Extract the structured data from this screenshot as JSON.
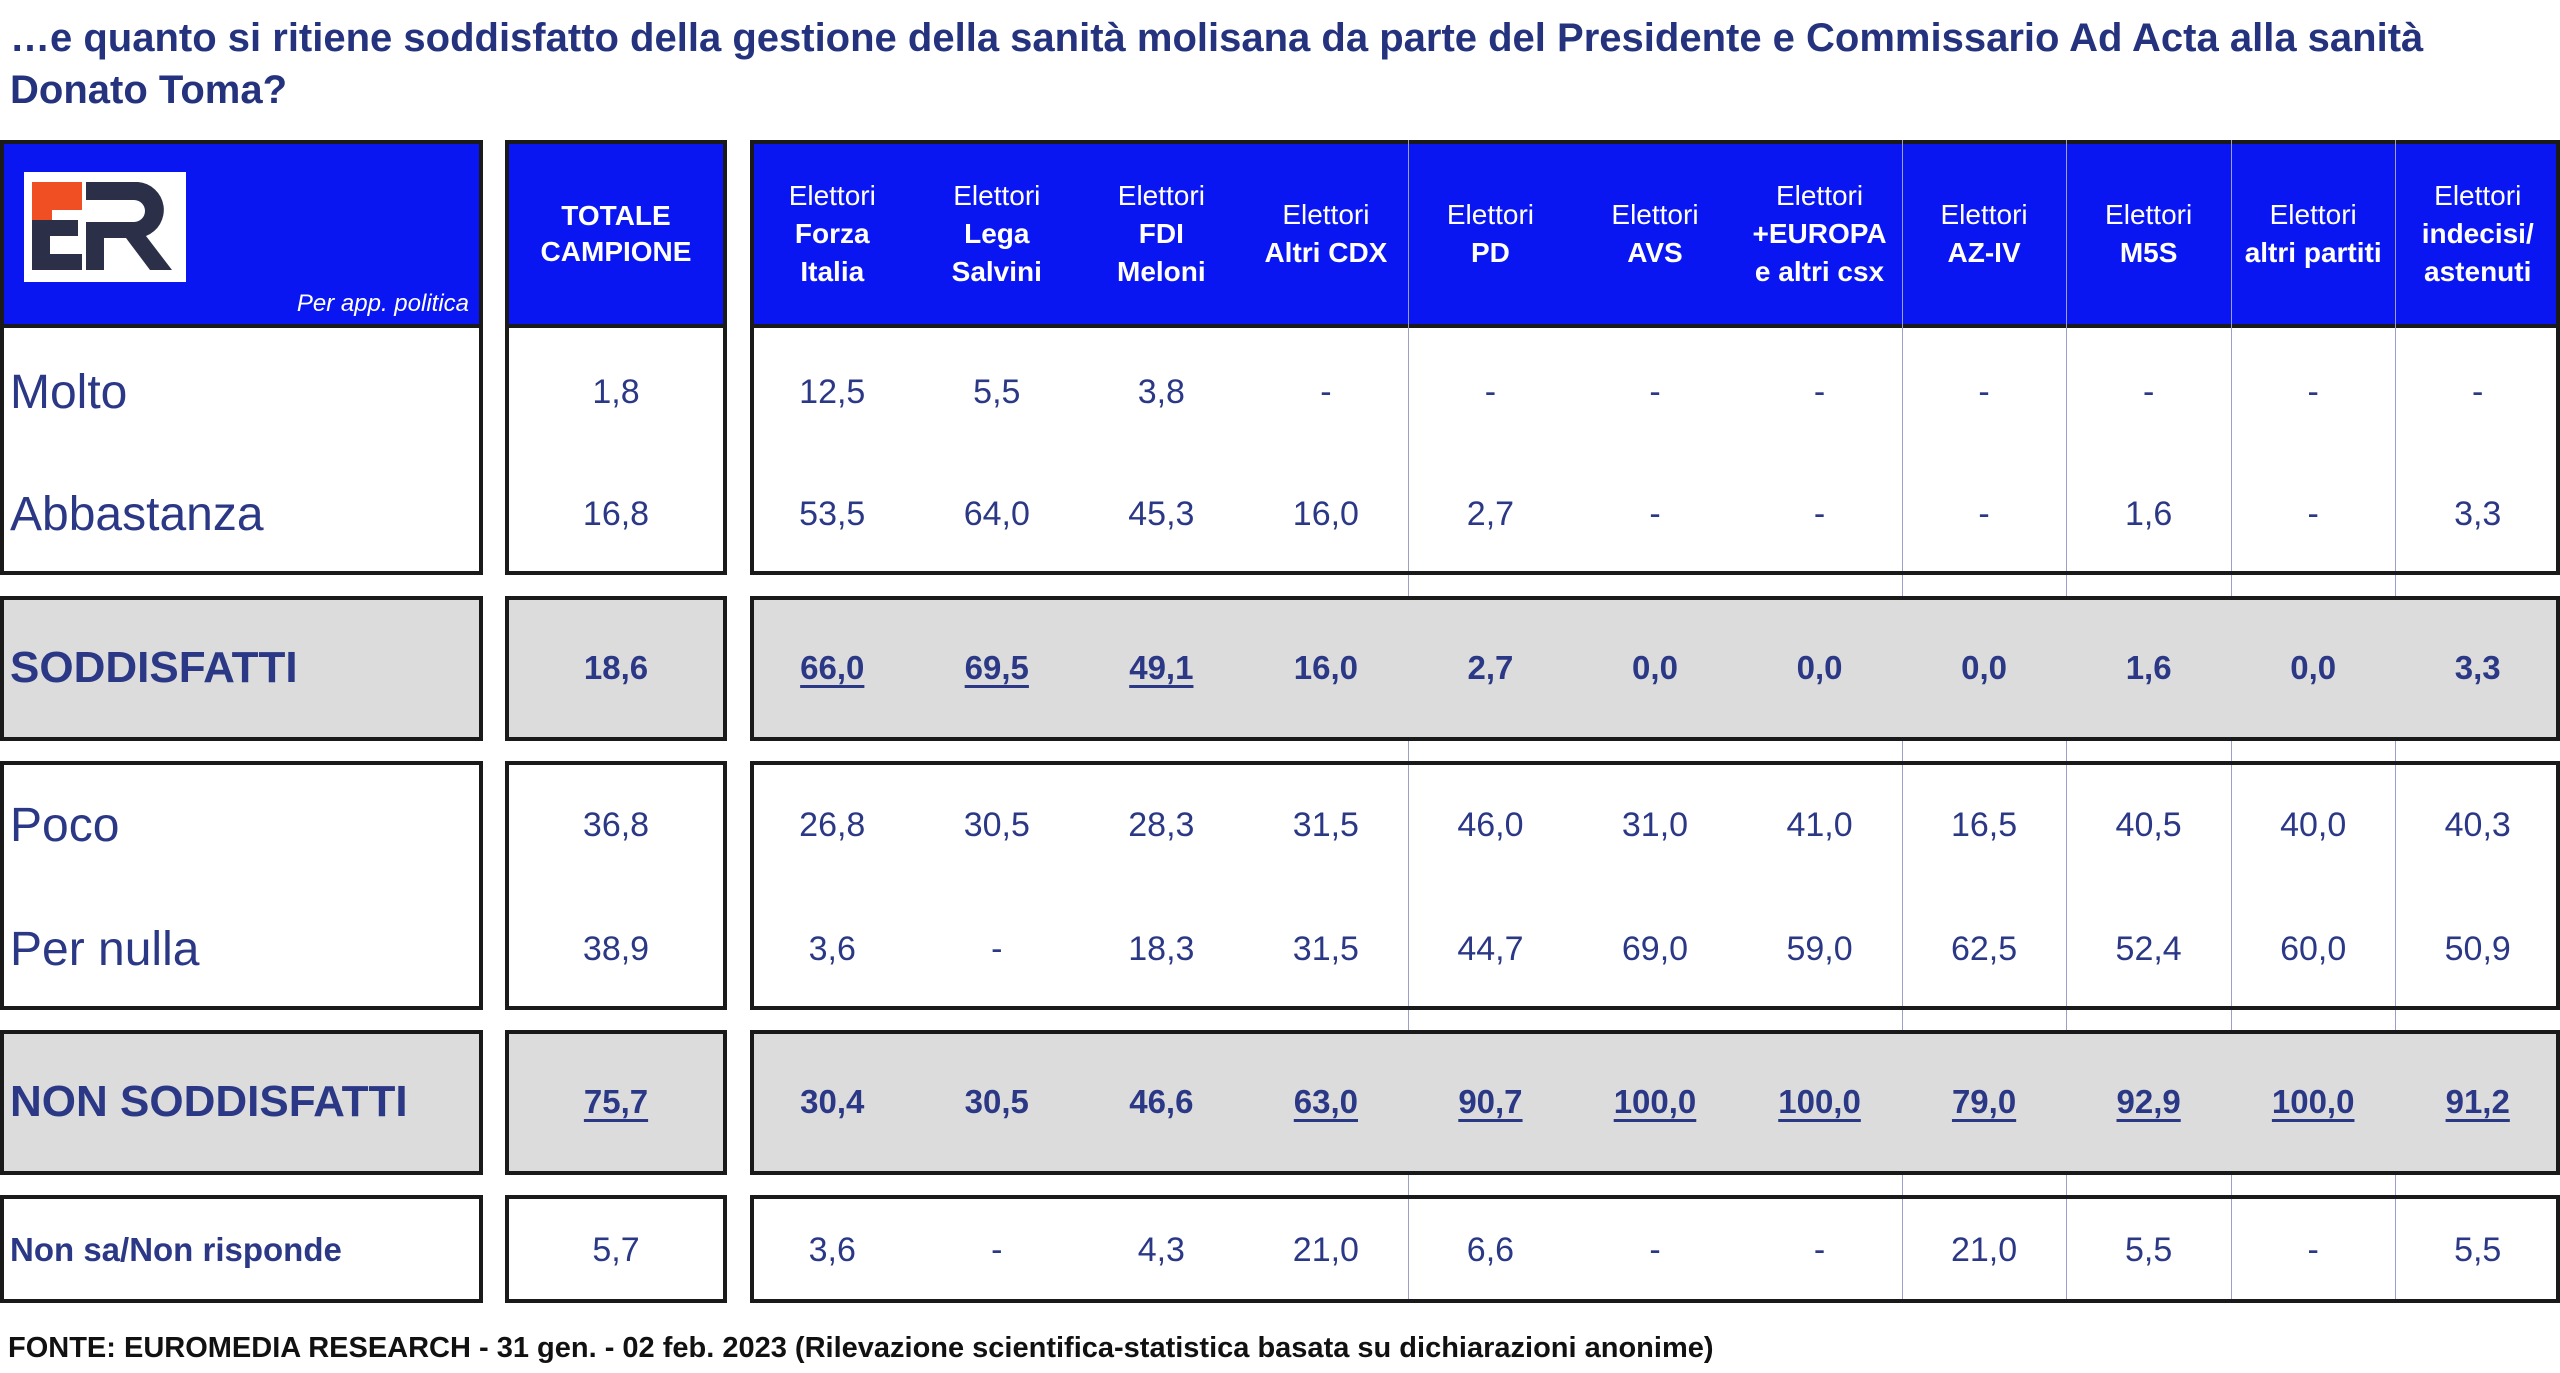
{
  "title": "…e quanto si ritiene soddisfatto della gestione della sanità molisana da parte del Presidente e Commissario Ad Acta alla sanità Donato Toma?",
  "logo_text": "ER",
  "header": {
    "segment_label": "Per app. politica",
    "total_label": [
      "TOTALE",
      "CAMPIONE"
    ],
    "columns": [
      [
        "Elettori",
        "Forza",
        "Italia"
      ],
      [
        "Elettori",
        "Lega",
        "Salvini"
      ],
      [
        "Elettori",
        "FDI",
        "Meloni"
      ],
      [
        "Elettori",
        "Altri CDX"
      ],
      [
        "Elettori",
        "PD"
      ],
      [
        "Elettori",
        "AVS"
      ],
      [
        "Elettori",
        "+EUROPA",
        "e altri csx"
      ],
      [
        "Elettori",
        "AZ-IV"
      ],
      [
        "Elettori",
        "M5S"
      ],
      [
        "Elettori",
        "altri partiti"
      ],
      [
        "Elettori",
        "indecisi/",
        "astenuti"
      ]
    ]
  },
  "rows": [
    {
      "label": "Molto",
      "total": "1,8",
      "values": [
        "12,5",
        "5,5",
        "3,8",
        "-",
        "-",
        "-",
        "-",
        "-",
        "-",
        "-",
        "-"
      ]
    },
    {
      "label": "Abbastanza",
      "total": "16,8",
      "values": [
        "53,5",
        "64,0",
        "45,3",
        "16,0",
        "2,7",
        "-",
        "-",
        "-",
        "1,6",
        "-",
        "3,3"
      ]
    },
    {
      "label": "SODDISFATTI",
      "total": "18,6",
      "values": [
        "66,0",
        "69,5",
        "49,1",
        "16,0",
        "2,7",
        "0,0",
        "0,0",
        "0,0",
        "1,6",
        "0,0",
        "3,3"
      ],
      "underlined": [
        0,
        1,
        2
      ],
      "total_underlined": false
    },
    {
      "label": "Poco",
      "total": "36,8",
      "values": [
        "26,8",
        "30,5",
        "28,3",
        "31,5",
        "46,0",
        "31,0",
        "41,0",
        "16,5",
        "40,5",
        "40,0",
        "40,3"
      ]
    },
    {
      "label": "Per nulla",
      "total": "38,9",
      "values": [
        "3,6",
        "-",
        "18,3",
        "31,5",
        "44,7",
        "69,0",
        "59,0",
        "62,5",
        "52,4",
        "60,0",
        "50,9"
      ]
    },
    {
      "label": "NON SODDISFATTI",
      "total": "75,7",
      "values": [
        "30,4",
        "30,5",
        "46,6",
        "63,0",
        "90,7",
        "100,0",
        "100,0",
        "79,0",
        "92,9",
        "100,0",
        "91,2"
      ],
      "underlined": [
        3,
        4,
        5,
        6,
        7,
        8,
        9,
        10
      ],
      "total_underlined": true
    },
    {
      "label": "Non sa/Non risponde",
      "total": "5,7",
      "values": [
        "3,6",
        "-",
        "4,3",
        "21,0",
        "6,6",
        "-",
        "-",
        "21,0",
        "5,5",
        "-",
        "5,5"
      ]
    }
  ],
  "footer": "FONTE: EUROMEDIA RESEARCH - 31 gen. - 02 feb. 2023 (Rilevazione scientifica-statistica basata su dichiarazioni anonime)",
  "colors": {
    "header_blue": "#0a16f2",
    "text_navy": "#2b3886",
    "summary_gray": "#dcdcdc",
    "logo_orange": "#f04e23"
  }
}
